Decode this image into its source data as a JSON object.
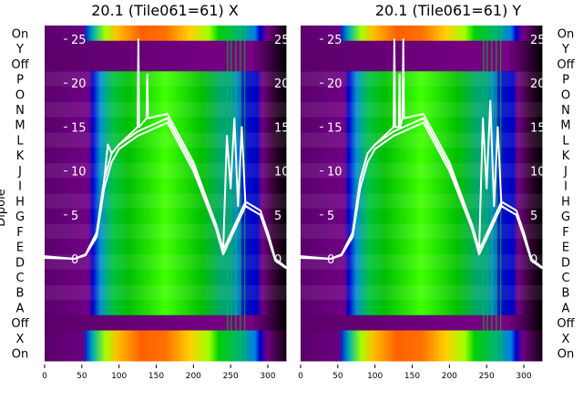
{
  "chart_data": [
    {
      "type": "heatmap",
      "title": "20.1 (Tile061=61) X",
      "ylabel": "Dipole",
      "row_labels": [
        "On",
        "Y",
        "Off",
        "P",
        "O",
        "N",
        "M",
        "L",
        "K",
        "J",
        "I",
        "H",
        "G",
        "F",
        "E",
        "D",
        "C",
        "B",
        "A",
        "Off",
        "X",
        "On"
      ],
      "x_ticks": [
        0,
        50,
        100,
        150,
        200,
        250,
        300
      ],
      "xlim": [
        0,
        325
      ],
      "overlay": {
        "type": "line",
        "y_ticks": [
          0,
          5,
          10,
          15,
          20,
          25
        ],
        "ylim": [
          -3,
          28
        ],
        "series": [
          {
            "name": "s1",
            "x": [
              0,
              40,
              55,
              70,
              80,
              85,
              90,
              100,
              125,
              126,
              127,
              137,
              138,
              139,
              165,
              200,
              230,
              240,
              245,
              250,
              255,
              260,
              265,
              270,
              280,
              290,
              300,
              310,
              325
            ],
            "y": [
              0.3,
              0,
              0.5,
              3,
              9,
              13,
              12,
              13,
              15,
              25,
              15,
              16,
              21,
              16,
              16.5,
              11,
              4,
              1,
              14,
              8,
              16,
              6,
              15,
              6,
              5.5,
              5,
              3,
              0,
              -1
            ]
          },
          {
            "name": "s2",
            "x": [
              0,
              40,
              55,
              70,
              80,
              90,
              100,
              125,
              165,
              200,
              230,
              240,
              270,
              280,
              290,
              300,
              310,
              325
            ],
            "y": [
              0.2,
              0,
              0.5,
              3,
              9,
              12,
              13,
              14.5,
              16,
              10.5,
              4,
              1,
              6.5,
              6,
              5.5,
              3,
              0,
              -1
            ]
          },
          {
            "name": "s3",
            "x": [
              0,
              40,
              55,
              70,
              80,
              90,
              100,
              125,
              165,
              200,
              230,
              240,
              270,
              280,
              290,
              300,
              310,
              325
            ],
            "y": [
              0.1,
              0,
              0.4,
              2.5,
              8,
              11,
              12.5,
              14,
              15.5,
              10,
              3.5,
              0.5,
              6,
              5.5,
              5,
              2.5,
              -0.2,
              -1.1
            ]
          }
        ]
      }
    },
    {
      "type": "heatmap",
      "title": "20.1 (Tile061=61) Y",
      "row_labels": [
        "On",
        "Y",
        "Off",
        "P",
        "O",
        "N",
        "M",
        "L",
        "K",
        "J",
        "I",
        "H",
        "G",
        "F",
        "E",
        "D",
        "C",
        "B",
        "A",
        "Off",
        "X",
        "On"
      ],
      "x_ticks": [
        0,
        50,
        100,
        150,
        200,
        250,
        300
      ],
      "xlim": [
        0,
        325
      ],
      "overlay": {
        "type": "line",
        "y_ticks": [
          0,
          5,
          10,
          15,
          20,
          25
        ],
        "ylim": [
          -3,
          28
        ],
        "series": [
          {
            "name": "s1",
            "x": [
              0,
              40,
              55,
              70,
              80,
              90,
              100,
              125,
              126,
              127,
              132,
              133,
              134,
              137,
              138,
              139,
              165,
              200,
              230,
              240,
              245,
              250,
              255,
              260,
              265,
              270,
              280,
              290,
              300,
              310,
              325
            ],
            "y": [
              0.3,
              0,
              0.5,
              3,
              9,
              12,
              13,
              15,
              25,
              15,
              15,
              21,
              15,
              16,
              25,
              16,
              16.5,
              11,
              4,
              1,
              16,
              8,
              18,
              6,
              15,
              6,
              5.5,
              5,
              3,
              0,
              -1
            ]
          },
          {
            "name": "s2",
            "x": [
              0,
              40,
              55,
              70,
              80,
              90,
              100,
              125,
              165,
              200,
              230,
              240,
              270,
              280,
              290,
              300,
              310,
              325
            ],
            "y": [
              0.2,
              0,
              0.5,
              3,
              9,
              12,
              13,
              14.5,
              16,
              10.5,
              4,
              1,
              6.5,
              6,
              5.5,
              3,
              0,
              -1
            ]
          },
          {
            "name": "s3",
            "x": [
              0,
              40,
              55,
              70,
              80,
              90,
              100,
              125,
              165,
              200,
              230,
              240,
              270,
              280,
              290,
              300,
              310,
              325
            ],
            "y": [
              0.1,
              0,
              0.4,
              2.5,
              8,
              11,
              12.5,
              14,
              15.5,
              10,
              3.5,
              0.5,
              6,
              5.5,
              5,
              2.5,
              -0.2,
              -1.1
            ]
          }
        ]
      }
    }
  ]
}
